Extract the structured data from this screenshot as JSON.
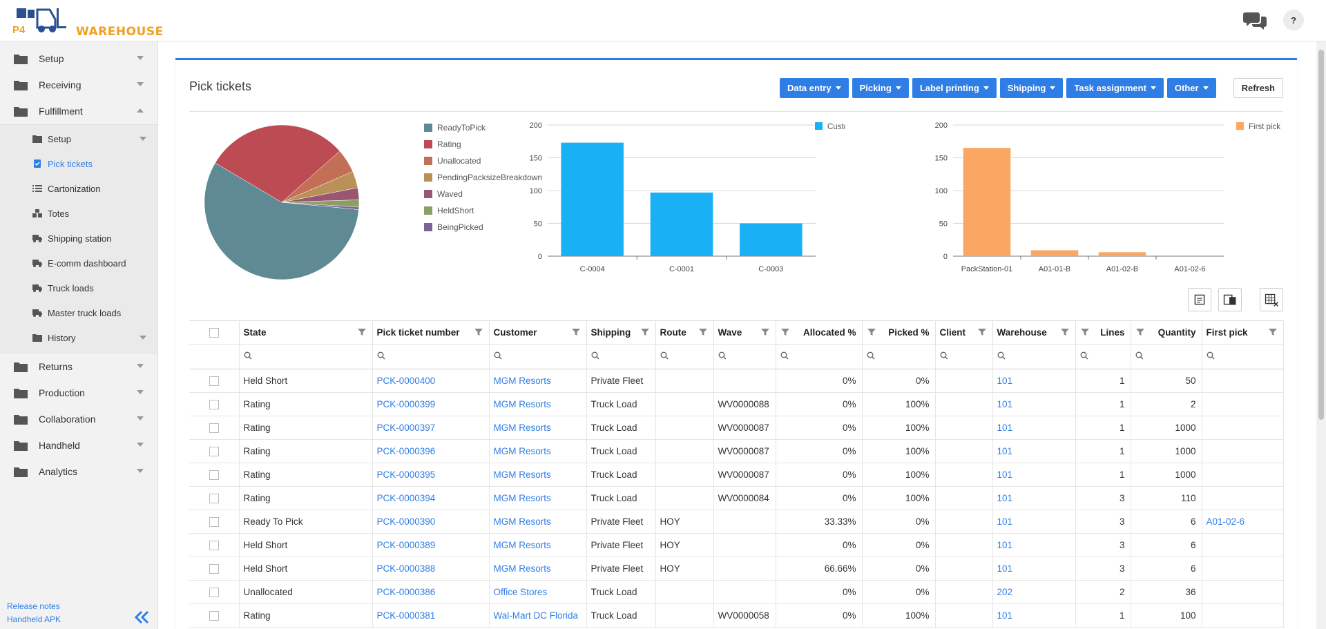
{
  "app": {
    "logo_text": "WAREHOUSE",
    "logo_mark": "P4"
  },
  "header": {
    "help_label": "?"
  },
  "sidebar": {
    "items": [
      {
        "label": "Setup",
        "expanded": false
      },
      {
        "label": "Receiving",
        "expanded": false
      },
      {
        "label": "Fulfillment",
        "expanded": true
      }
    ],
    "fulfillment_sub": [
      {
        "label": "Setup",
        "icon": "folder-icon",
        "has_caret": true
      },
      {
        "label": "Pick tickets",
        "icon": "clipboard-icon",
        "active": true
      },
      {
        "label": "Cartonization",
        "icon": "list-icon"
      },
      {
        "label": "Totes",
        "icon": "boxes-icon"
      },
      {
        "label": "Shipping station",
        "icon": "truck-icon"
      },
      {
        "label": "E-comm dashboard",
        "icon": "truck-icon"
      },
      {
        "label": "Truck loads",
        "icon": "truck-icon"
      },
      {
        "label": "Master truck loads",
        "icon": "truck-icon"
      },
      {
        "label": "History",
        "icon": "folder-icon",
        "has_caret": true
      }
    ],
    "items_after": [
      {
        "label": "Returns"
      },
      {
        "label": "Production"
      },
      {
        "label": "Collaboration"
      },
      {
        "label": "Handheld"
      },
      {
        "label": "Analytics"
      }
    ],
    "footer": {
      "release_notes": "Release notes",
      "handheld_apk": "Handheld APK"
    }
  },
  "page": {
    "title": "Pick tickets",
    "toolbar": [
      "Data entry",
      "Picking",
      "Label printing",
      "Shipping",
      "Task assignment",
      "Other"
    ],
    "refresh_label": "Refresh"
  },
  "chart_data": [
    {
      "type": "pie",
      "categories": [
        "ReadyToPick",
        "Rating",
        "Unallocated",
        "PendingPacksizeBreakdown",
        "Waved",
        "HeldShort",
        "BeingPicked"
      ],
      "values": [
        57,
        30,
        5,
        3.5,
        2.5,
        1.5,
        0.5
      ],
      "colors": [
        "#5f8a94",
        "#bd4b54",
        "#c36e56",
        "#b89058",
        "#9a5670",
        "#8b9e64",
        "#7a6496"
      ],
      "legend": "right"
    },
    {
      "type": "bar",
      "categories": [
        "C-0004",
        "C-0001",
        "C-0003"
      ],
      "series": [
        {
          "name": "Customers",
          "values": [
            173,
            97,
            50
          ],
          "color": "#1ab0f5"
        }
      ],
      "ylim": [
        0,
        200
      ],
      "yticks": [
        0,
        50,
        100,
        150,
        200
      ],
      "legend": "top-right"
    },
    {
      "type": "bar",
      "categories": [
        "PackStation-01",
        "A01-01-B",
        "A01-02-B",
        "A01-02-6"
      ],
      "series": [
        {
          "name": "First pick",
          "values": [
            165,
            9,
            6,
            0
          ],
          "color": "#fba763"
        }
      ],
      "ylim": [
        0,
        200
      ],
      "yticks": [
        0,
        50,
        100,
        150,
        200
      ],
      "legend": "top-right"
    }
  ],
  "grid": {
    "columns": [
      "State",
      "Pick ticket number",
      "Customer",
      "Shipping",
      "Route",
      "Wave",
      "Allocated %",
      "Picked %",
      "Client",
      "Warehouse",
      "Lines",
      "Quantity",
      "First pick"
    ],
    "rows": [
      [
        "Held Short",
        "PCK-0000400",
        "MGM Resorts",
        "Private Fleet",
        "",
        "",
        "0%",
        "0%",
        "",
        "101",
        "1",
        "50",
        ""
      ],
      [
        "Rating",
        "PCK-0000399",
        "MGM Resorts",
        "Truck Load",
        "",
        "WV0000088",
        "0%",
        "100%",
        "",
        "101",
        "1",
        "2",
        ""
      ],
      [
        "Rating",
        "PCK-0000397",
        "MGM Resorts",
        "Truck Load",
        "",
        "WV0000087",
        "0%",
        "100%",
        "",
        "101",
        "1",
        "1000",
        ""
      ],
      [
        "Rating",
        "PCK-0000396",
        "MGM Resorts",
        "Truck Load",
        "",
        "WV0000087",
        "0%",
        "100%",
        "",
        "101",
        "1",
        "1000",
        ""
      ],
      [
        "Rating",
        "PCK-0000395",
        "MGM Resorts",
        "Truck Load",
        "",
        "WV0000087",
        "0%",
        "100%",
        "",
        "101",
        "1",
        "1000",
        ""
      ],
      [
        "Rating",
        "PCK-0000394",
        "MGM Resorts",
        "Truck Load",
        "",
        "WV0000084",
        "0%",
        "100%",
        "",
        "101",
        "3",
        "110",
        ""
      ],
      [
        "Ready To Pick",
        "PCK-0000390",
        "MGM Resorts",
        "Private Fleet",
        "HOY",
        "",
        "33.33%",
        "0%",
        "",
        "101",
        "3",
        "6",
        "A01-02-6"
      ],
      [
        "Held Short",
        "PCK-0000389",
        "MGM Resorts",
        "Private Fleet",
        "HOY",
        "",
        "0%",
        "0%",
        "",
        "101",
        "3",
        "6",
        ""
      ],
      [
        "Held Short",
        "PCK-0000388",
        "MGM Resorts",
        "Private Fleet",
        "HOY",
        "",
        "66.66%",
        "0%",
        "",
        "101",
        "3",
        "6",
        ""
      ],
      [
        "Unallocated",
        "PCK-0000386",
        "Office Stores",
        "Truck Load",
        "",
        "",
        "0%",
        "0%",
        "",
        "202",
        "2",
        "36",
        ""
      ],
      [
        "Rating",
        "PCK-0000381",
        "Wal-Mart DC Florida",
        "Truck Load",
        "",
        "WV0000058",
        "0%",
        "100%",
        "",
        "101",
        "1",
        "100",
        ""
      ]
    ]
  },
  "colors": {
    "accent": "#2f7ee6",
    "logo": "#f0a020"
  }
}
